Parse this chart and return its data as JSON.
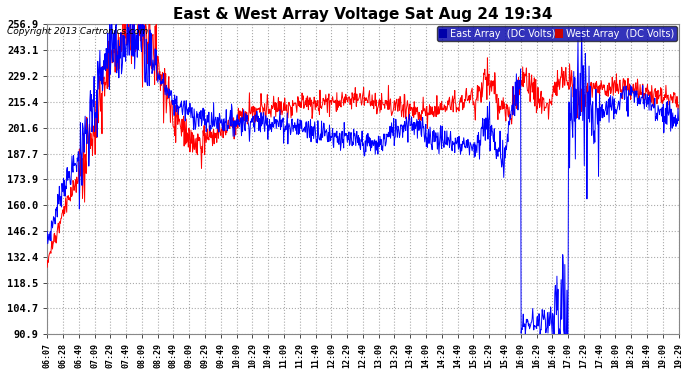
{
  "title": "East & West Array Voltage Sat Aug 24 19:34",
  "copyright": "Copyright 2013 Cartronics.com",
  "legend_east": "East Array  (DC Volts)",
  "legend_west": "West Array  (DC Volts)",
  "fig_bg_color": "#ffffff",
  "plot_bg_color": "#ffffff",
  "grid_color": "#aaaaaa",
  "east_color": "#0000ff",
  "west_color": "#ff0000",
  "east_legend_bg": "#0000aa",
  "west_legend_bg": "#cc0000",
  "ymin": 90.9,
  "ymax": 256.9,
  "yticks": [
    256.9,
    243.1,
    229.2,
    215.4,
    201.6,
    187.7,
    173.9,
    160.0,
    146.2,
    132.4,
    118.5,
    104.7,
    90.9
  ],
  "xtick_labels": [
    "06:07",
    "06:28",
    "06:49",
    "07:09",
    "07:29",
    "07:49",
    "08:09",
    "08:29",
    "08:49",
    "09:09",
    "09:29",
    "09:49",
    "10:09",
    "10:29",
    "10:49",
    "11:09",
    "11:29",
    "11:49",
    "12:09",
    "12:29",
    "12:49",
    "13:09",
    "13:29",
    "13:49",
    "14:09",
    "14:29",
    "14:49",
    "15:09",
    "15:29",
    "15:49",
    "16:09",
    "16:29",
    "16:49",
    "17:09",
    "17:29",
    "17:49",
    "18:09",
    "18:29",
    "18:49",
    "19:09",
    "19:29"
  ]
}
